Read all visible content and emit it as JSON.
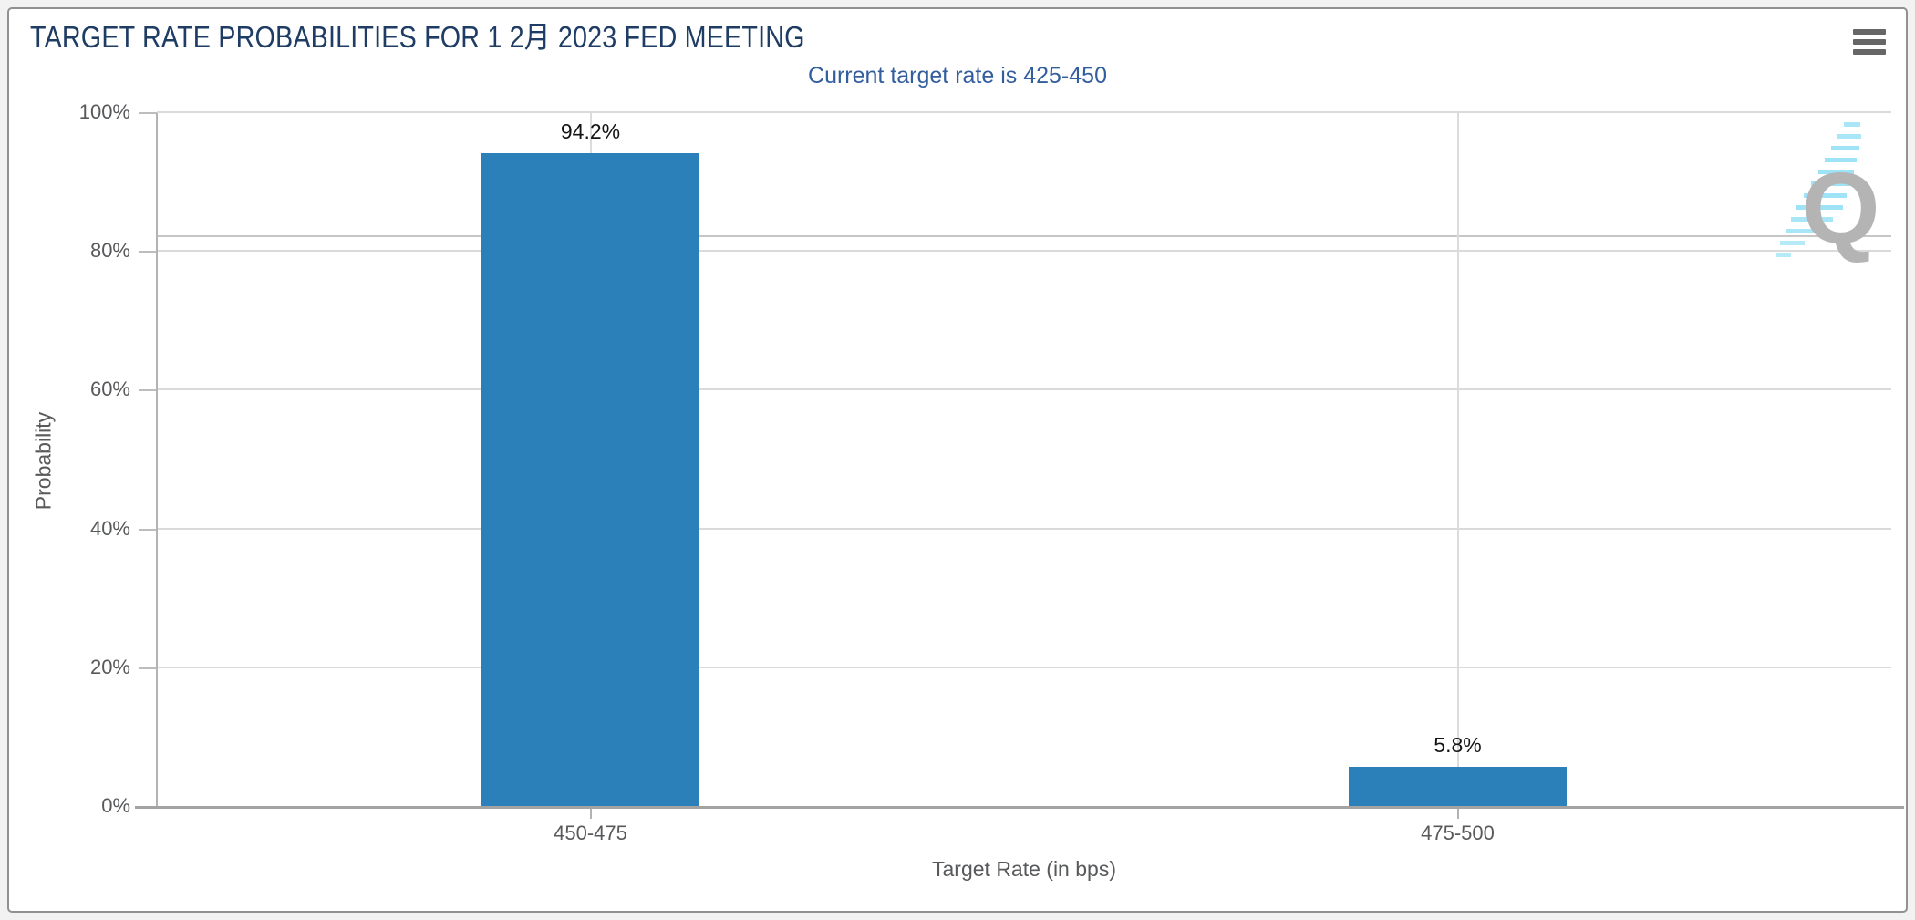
{
  "page": {
    "background_color": "#f2f2f2",
    "card_border_color": "#919191"
  },
  "header": {
    "title": "TARGET RATE PROBABILITIES FOR 1 2月 2023 FED MEETING",
    "menu_icon": "hamburger-menu-icon"
  },
  "chart_data": {
    "type": "bar",
    "title": "TARGET RATE PROBABILITIES FOR 1 2月 2023 FED MEETING",
    "subtitle": "Current target rate is 425-450",
    "categories": [
      "450-475",
      "475-500"
    ],
    "values": [
      94.2,
      5.8
    ],
    "value_labels": [
      "94.2%",
      "5.8%"
    ],
    "xlabel": "Target Rate (in bps)",
    "ylabel": "Probability",
    "ylim": [
      0,
      100
    ],
    "yticks": [
      {
        "pct": 0,
        "label": "0%"
      },
      {
        "pct": 20,
        "label": "20%"
      },
      {
        "pct": 40,
        "label": "40%"
      },
      {
        "pct": 60,
        "label": "60%"
      },
      {
        "pct": 80,
        "label": "80%"
      },
      {
        "pct": 100,
        "label": "100%"
      }
    ],
    "extra_gridline_pct": 82.1,
    "grid": true,
    "legend": false,
    "bar_color": "#2c80b9",
    "title_color": "#1e3c64",
    "subtitle_color": "#335e9e",
    "watermark_letter": "Q"
  }
}
